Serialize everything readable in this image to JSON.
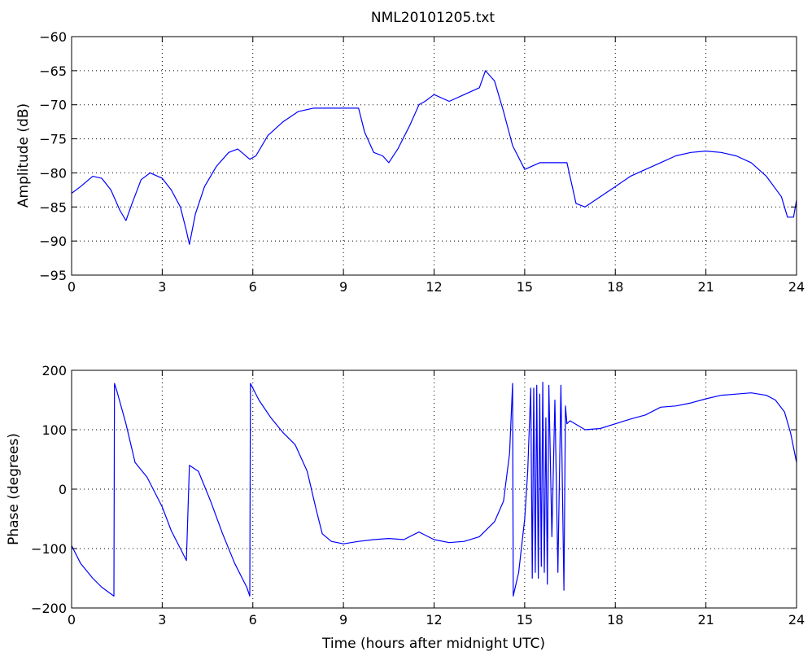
{
  "figure": {
    "title": "NML20101205.txt"
  },
  "colors": {
    "series": "#0000ff",
    "axes": "#000000",
    "grid": "#000000",
    "background": "#ffffff"
  },
  "chart_data": [
    {
      "type": "line",
      "title": "NML20101205.txt",
      "xlabel": "",
      "ylabel": "Amplitude (dB)",
      "xlim": [
        0,
        24
      ],
      "ylim": [
        -95,
        -60
      ],
      "xticks": [
        0,
        3,
        6,
        9,
        12,
        15,
        18,
        21,
        24
      ],
      "yticks": [
        -95,
        -90,
        -85,
        -80,
        -75,
        -70,
        -65,
        -60
      ],
      "xtick_labels": [
        "0",
        "3",
        "6",
        "9",
        "12",
        "15",
        "18",
        "21",
        "24"
      ],
      "ytick_labels": [
        "−95",
        "−90",
        "−85",
        "−80",
        "−75",
        "−70",
        "−65",
        "−60"
      ],
      "grid": true,
      "series": [
        {
          "x": [
            0,
            0.3,
            0.7,
            1.0,
            1.3,
            1.6,
            1.8,
            2.0,
            2.3,
            2.6,
            3.0,
            3.3,
            3.6,
            3.8,
            3.9,
            4.1,
            4.4,
            4.8,
            5.2,
            5.5,
            5.9,
            6.1,
            6.5,
            7.0,
            7.5,
            8.0,
            8.5,
            9.0,
            9.5,
            9.7,
            10.0,
            10.3,
            10.5,
            10.8,
            11.2,
            11.5,
            11.7,
            12.0,
            12.5,
            13.0,
            13.5,
            13.7,
            14.0,
            14.3,
            14.6,
            15.0,
            15.5,
            16.0,
            16.4,
            16.7,
            17.0,
            17.5,
            18.0,
            18.5,
            19.0,
            19.5,
            20.0,
            20.5,
            21.0,
            21.5,
            22.0,
            22.5,
            23.0,
            23.5,
            23.7,
            23.9,
            24.0
          ],
          "y": [
            -83,
            -82,
            -80.5,
            -80.8,
            -82.5,
            -85.5,
            -87,
            -84.5,
            -81,
            -80,
            -80.8,
            -82.5,
            -85,
            -88.5,
            -90.5,
            -86,
            -82,
            -79,
            -77,
            -76.5,
            -78,
            -77.5,
            -74.5,
            -72.5,
            -71,
            -70.5,
            -70.5,
            -70.5,
            -70.5,
            -74,
            -77,
            -77.5,
            -78.5,
            -76.5,
            -73,
            -70,
            -69.5,
            -68.5,
            -69.5,
            -68.5,
            -67.5,
            -65,
            -66.5,
            -71,
            -76,
            -79.5,
            -78.5,
            -78.5,
            -78.5,
            -84.5,
            -85,
            -83.5,
            -82,
            -80.5,
            -79.5,
            -78.5,
            -77.5,
            -77,
            -76.8,
            -77,
            -77.5,
            -78.5,
            -80.5,
            -83.5,
            -86.5,
            -86.5,
            -84
          ]
        }
      ]
    },
    {
      "type": "line",
      "title": "",
      "xlabel": "Time (hours after midnight UTC)",
      "ylabel": "Phase (degrees)",
      "xlim": [
        0,
        24
      ],
      "ylim": [
        -200,
        200
      ],
      "xticks": [
        0,
        3,
        6,
        9,
        12,
        15,
        18,
        21,
        24
      ],
      "yticks": [
        -200,
        -100,
        0,
        100,
        200
      ],
      "xtick_labels": [
        "0",
        "3",
        "6",
        "9",
        "12",
        "15",
        "18",
        "21",
        "24"
      ],
      "ytick_labels": [
        "−200",
        "−100",
        "0",
        "100",
        "200"
      ],
      "grid": true,
      "series": [
        {
          "x": [
            0,
            0.3,
            0.7,
            1.0,
            1.4,
            1.42,
            1.5,
            1.8,
            2.1,
            2.5,
            3.0,
            3.3,
            3.6,
            3.8,
            3.9,
            4.2,
            4.6,
            5.0,
            5.4,
            5.8,
            5.9,
            5.92,
            6.2,
            6.6,
            7.0,
            7.4,
            7.8,
            8.1,
            8.3,
            8.6,
            9.0,
            9.5,
            10.0,
            10.5,
            11.0,
            11.5,
            12.0,
            12.5,
            13.0,
            13.5,
            14.0,
            14.3,
            14.5,
            14.6,
            14.62,
            14.8,
            15.0,
            15.1,
            15.2,
            15.25,
            15.3,
            15.35,
            15.4,
            15.45,
            15.5,
            15.55,
            15.6,
            15.65,
            15.7,
            15.75,
            15.8,
            15.9,
            16.0,
            16.1,
            16.2,
            16.3,
            16.35,
            16.4,
            16.5,
            17.0,
            17.5,
            18.0,
            18.5,
            19.0,
            19.5,
            20.0,
            20.5,
            21.0,
            21.5,
            22.0,
            22.5,
            23.0,
            23.3,
            23.6,
            23.8,
            24.0
          ],
          "y": [
            -95,
            -125,
            -150,
            -165,
            -180,
            178,
            165,
            110,
            45,
            20,
            -30,
            -70,
            -100,
            -120,
            40,
            30,
            -20,
            -75,
            -125,
            -165,
            -180,
            178,
            150,
            120,
            95,
            75,
            30,
            -35,
            -75,
            -88,
            -92,
            -88,
            -85,
            -83,
            -85,
            -72,
            -85,
            -90,
            -88,
            -80,
            -55,
            -20,
            60,
            178,
            -180,
            -140,
            -50,
            30,
            170,
            -150,
            170,
            -140,
            175,
            -150,
            160,
            -130,
            180,
            -140,
            120,
            -160,
            175,
            -80,
            150,
            -140,
            175,
            -170,
            140,
            110,
            115,
            100,
            102,
            110,
            118,
            125,
            138,
            140,
            145,
            152,
            158,
            160,
            162,
            158,
            150,
            130,
            95,
            45
          ]
        }
      ]
    }
  ]
}
